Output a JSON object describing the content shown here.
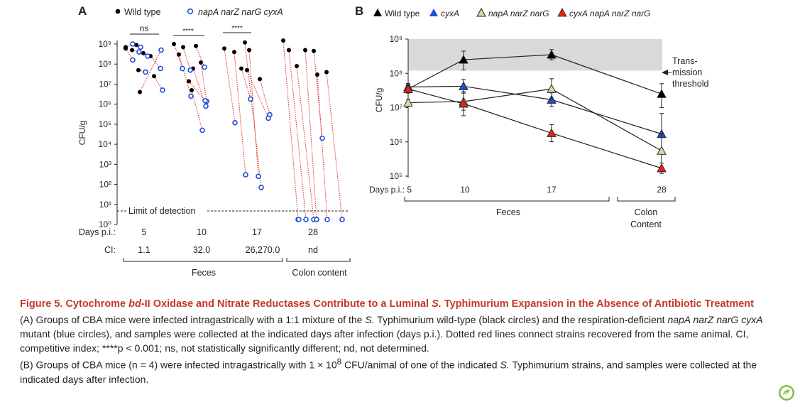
{
  "panel_a": {
    "letter": "A",
    "legend": {
      "wt_label": "Wild type",
      "mut_label": "napA narZ narG cyxA"
    },
    "ytick_labels": [
      "10⁰",
      "10¹",
      "10²",
      "10³",
      "10⁴",
      "10⁵",
      "10⁶",
      "10⁷",
      "10⁸",
      "10⁹"
    ],
    "ylabel": "CFU/g",
    "detection_label": "Limit of detection",
    "days_label": "Days p.i.:",
    "ci_label": "CI:",
    "days": [
      "5",
      "10",
      "17",
      "28"
    ],
    "ci": [
      "1.1",
      "32.0",
      "26,270.0",
      "nd"
    ],
    "significance": [
      "ns",
      "****",
      "****"
    ],
    "group_labels": {
      "feces": "Feces",
      "colon": "Colon content"
    }
  },
  "panel_b": {
    "letter": "B",
    "legend": [
      "Wild type",
      "cyxA",
      "napA narZ narG",
      "cyxA napA narZ narG"
    ],
    "ytick_labels": [
      "10⁵",
      "10⁶",
      "10⁷",
      "10⁸",
      "10⁹"
    ],
    "ylabel": "CFU/g",
    "days_label": "Days p.i.: 5",
    "xtick_labels": [
      "10",
      "17",
      "28"
    ],
    "group_labels": {
      "feces": "Feces",
      "colon_l1": "Colon",
      "colon_l2": "Content"
    },
    "threshold_lines": [
      "Trans-",
      "mission",
      "threshold"
    ]
  },
  "chart_data": [
    {
      "type": "scatter",
      "panel": "A",
      "ylabel": "CFU/g",
      "y_scale": "log",
      "ylim": [
        1,
        1000000000
      ],
      "categories": [
        "5",
        "10",
        "17",
        "28"
      ],
      "detection_limit": 3,
      "series": [
        {
          "name": "Wild type",
          "color": "#000000",
          "values": [
            [
              700000000,
              900000000,
              500000000,
              600000000,
              350000000,
              250000000,
              50000000,
              25000000,
              4000000
            ],
            [
              1000000000,
              700000000,
              800000000,
              300000000,
              120000000,
              60000000,
              14000000,
              5000000
            ],
            [
              600000000,
              400000000,
              500000000,
              1200000000,
              60000000,
              18000000,
              50000000
            ],
            [
              1500000000,
              500000000,
              80000000,
              500000000,
              450000000,
              30000000,
              40000000
            ]
          ]
        },
        {
          "name": "napA narZ narG cyxA",
          "color": "#1e4fd8",
          "values": [
            [
              1000000000,
              700000000,
              400000000,
              160000000,
              250000000,
              60000000,
              40000000,
              5000000,
              500000000
            ],
            [
              60000000,
              50000000,
              70000000,
              2500000,
              1400000,
              800000,
              1500000,
              50000
            ],
            [
              120000,
              300,
              250,
              70,
              1800000,
              300000,
              200000
            ],
            [
              1,
              1,
              1,
              1,
              20000,
              1,
              1,
              1
            ]
          ]
        }
      ]
    },
    {
      "type": "line",
      "panel": "B",
      "ylabel": "CFU/g",
      "y_scale": "log",
      "ylim": [
        100000,
        1000000000
      ],
      "x": [
        5,
        10,
        17,
        28
      ],
      "transmission_threshold": [
        120000000,
        1000000000
      ],
      "series": [
        {
          "name": "Wild type",
          "color": "#000000",
          "values": [
            35000000,
            250000000,
            350000000,
            25000000
          ]
        },
        {
          "name": "cyxA",
          "color": "#1f4fd6",
          "values": [
            40000000,
            42000000,
            17000000,
            1700000
          ]
        },
        {
          "name": "napA narZ narG",
          "color": "#d8d6a6",
          "values": [
            14000000,
            15000000,
            35000000,
            550000
          ]
        },
        {
          "name": "cyxA napA narZ narG",
          "color": "#e42418",
          "values": [
            35000000,
            13000000,
            1800000,
            170000
          ]
        }
      ]
    }
  ],
  "caption": {
    "title_1": "Figure 5.  Cytochrome ",
    "title_it": "bd",
    "title_2": "-II Oxidase and Nitrate Reductases Contribute to a Luminal ",
    "title_it2": "S.",
    "title_3": " Typhimurium Expansion in the Absence of Antibiotic Treatment",
    "a_1": "(A) Groups of CBA mice were infected intragastrically with a 1:1 mixture of the ",
    "a_it1": "S.",
    "a_2": " Typhimurium wild-type (black circles) and the respiration-deficient ",
    "a_it2": "napA narZ narG cyxA",
    "a_3": " mutant (blue circles), and samples were collected at the indicated days after infection (days p.i.). Dotted red lines connect strains recovered from the same animal. CI, competitive index; ****p < 0.001; ns, not statistically significantly different; nd, not determined.",
    "b_1": "(B) Groups of CBA mice (n = 4) were infected intragastrically with 1 × 10",
    "b_sup": "8",
    "b_2": " CFU/animal of one of the indicated ",
    "b_it": "S.",
    "b_3": " Typhimurium strains, and samples were collected at the indicated days after infection."
  }
}
